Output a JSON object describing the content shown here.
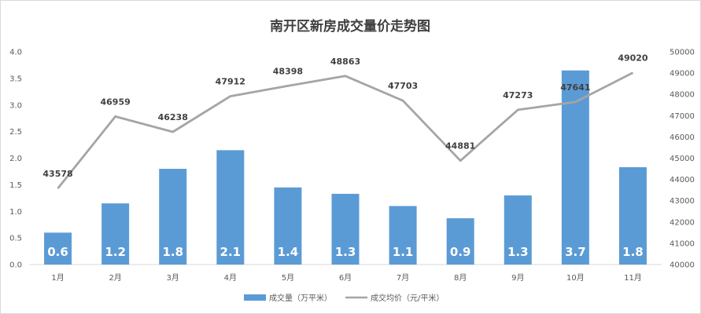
{
  "chart_data": {
    "type": "bar",
    "title": "南开区新房成交量价走势图",
    "categories": [
      "1月",
      "2月",
      "3月",
      "4月",
      "5月",
      "6月",
      "7月",
      "8月",
      "9月",
      "10月",
      "11月"
    ],
    "series": [
      {
        "name": "成交量（万平米）",
        "type": "bar",
        "axis": "left",
        "color": "#5b9bd5",
        "values": [
          0.6,
          1.15,
          1.8,
          2.15,
          1.45,
          1.33,
          1.1,
          0.87,
          1.3,
          3.65,
          1.83
        ],
        "labels": [
          "0.6",
          "1.2",
          "1.8",
          "2.1",
          "1.4",
          "1.3",
          "1.1",
          "0.9",
          "1.3",
          "3.7",
          "1.8"
        ]
      },
      {
        "name": "成交均价（元/平米）",
        "type": "line",
        "axis": "right",
        "color": "#a5a5a5",
        "values": [
          43578,
          46959,
          46238,
          47912,
          48398,
          48863,
          47703,
          44881,
          47273,
          47641,
          49020
        ],
        "labels": [
          "43578",
          "46959",
          "46238",
          "47912",
          "48398",
          "48863",
          "47703",
          "44881",
          "47273",
          "47641",
          "49020"
        ]
      }
    ],
    "y_left": {
      "min": 0,
      "max": 4,
      "ticks": [
        "0.0",
        "0.5",
        "1.0",
        "1.5",
        "2.0",
        "2.5",
        "3.0",
        "3.5",
        "4.0"
      ]
    },
    "y_right": {
      "min": 40000,
      "max": 50000,
      "ticks": [
        "40000",
        "41000",
        "42000",
        "43000",
        "44000",
        "45000",
        "46000",
        "47000",
        "48000",
        "49000",
        "50000"
      ]
    },
    "grid": false,
    "legend_position": "bottom"
  }
}
